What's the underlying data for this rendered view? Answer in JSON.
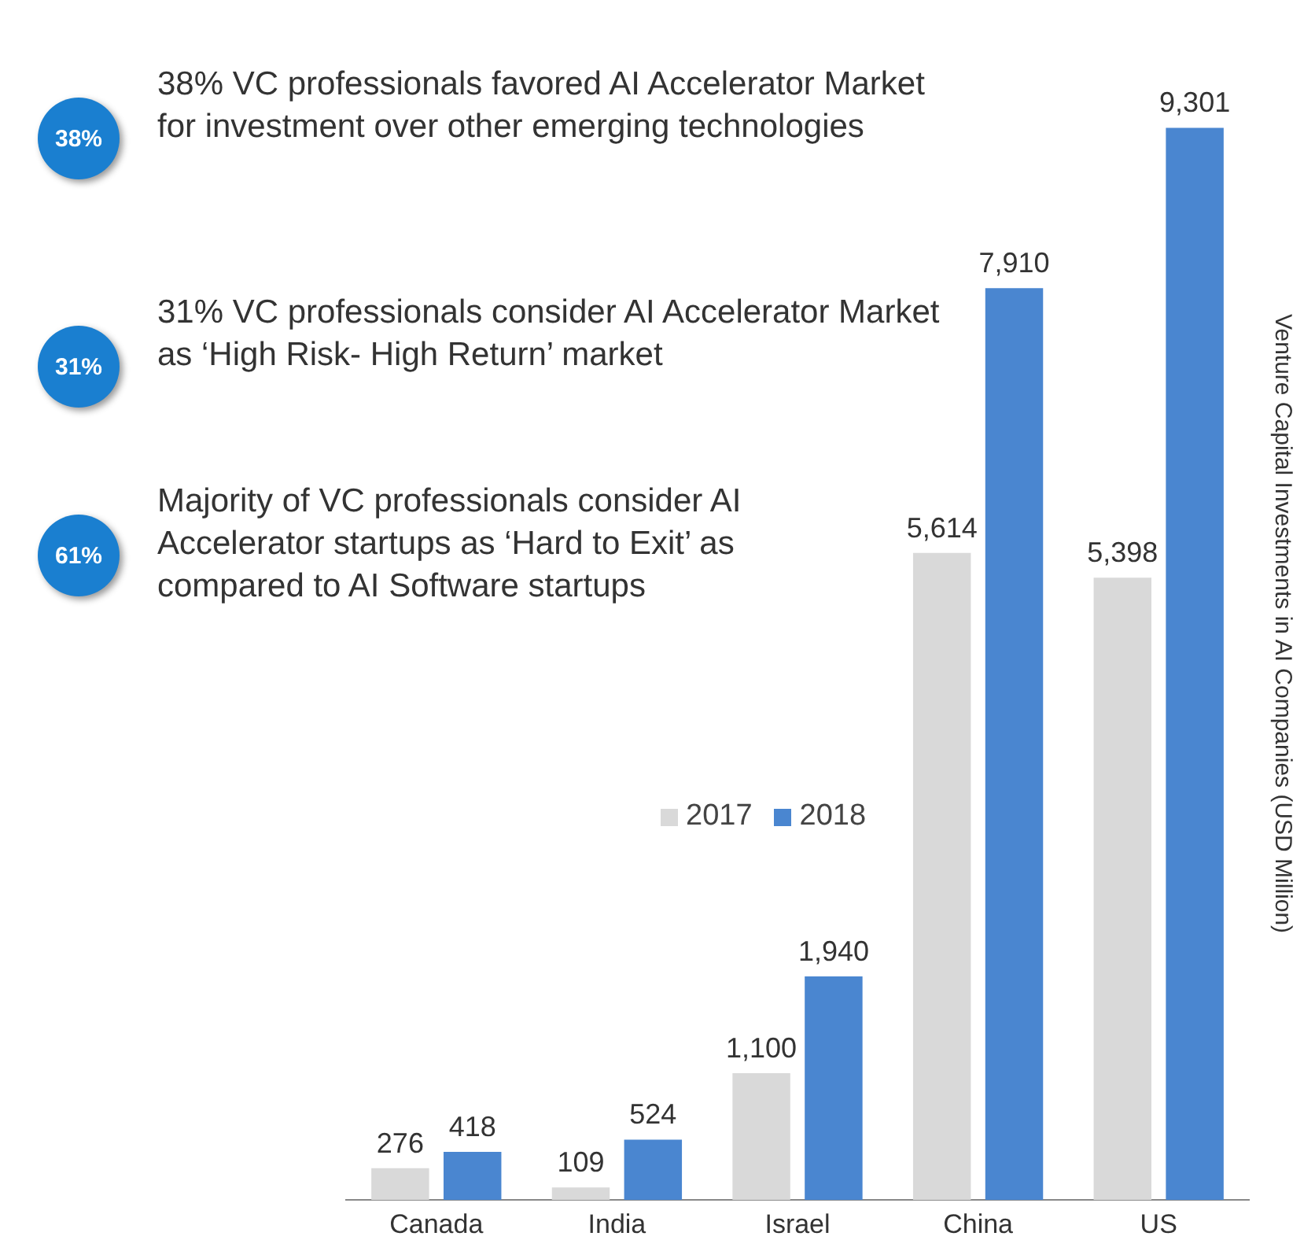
{
  "chart_data": {
    "type": "bar",
    "ylabel": "Venture Capital Investments in AI Companies (USD Million)",
    "categories": [
      "Canada",
      "India",
      "Israel",
      "China",
      "US"
    ],
    "series": [
      {
        "name": "2017",
        "color": "#d9d9d9",
        "values": [
          276,
          109,
          1100,
          5614,
          5398
        ],
        "value_labels": [
          "276",
          "109",
          "1,100",
          "5,614",
          "5,398"
        ]
      },
      {
        "name": "2018",
        "color": "#4a86d0",
        "values": [
          418,
          524,
          1940,
          7910,
          9301
        ],
        "value_labels": [
          "418",
          "524",
          "1,940",
          "7,910",
          "9,301"
        ]
      }
    ],
    "annotations": [
      "38%",
      "38% VC professionals favored  AI Accelerator Market for investment over other emerging technologies",
      "31%",
      "31% VC professionals consider AI Accelerator Market as ‘High Risk- High Return’ market",
      "61%",
      "Majority of VC professionals consider AI Accelerator startups as ‘Hard to Exit’ as compared to AI Software startups"
    ],
    "legend": "center",
    "grid": false
  }
}
